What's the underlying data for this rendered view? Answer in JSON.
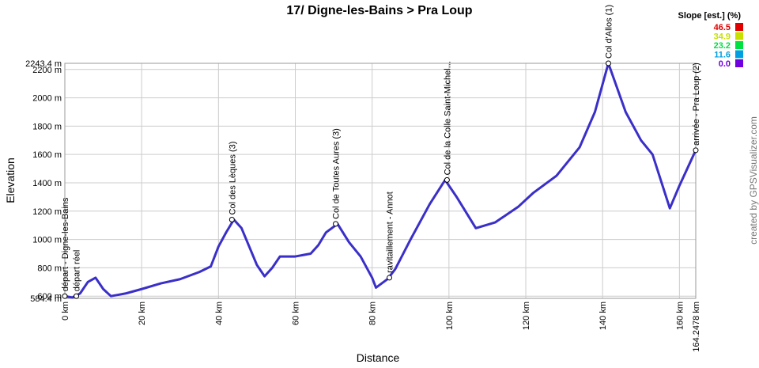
{
  "chart_data": {
    "type": "line",
    "title": "17/ Digne-les-Bains > Pra Loup",
    "x_label": "Distance",
    "y_label": "Elevation",
    "credit": "created by GPSVisualizer.com",
    "x": [
      0,
      2,
      4,
      6,
      8,
      10,
      12,
      14,
      16,
      20,
      25,
      30,
      35,
      38,
      40,
      42,
      44,
      46,
      48,
      50,
      52,
      54,
      56,
      60,
      64,
      66,
      68,
      71,
      74,
      77,
      80,
      81,
      84,
      86,
      90,
      95,
      99,
      102,
      107,
      112,
      118,
      122,
      128,
      134,
      138,
      141.5,
      146,
      150,
      153,
      157.5,
      160,
      164.2478
    ],
    "series": [
      {
        "name": "Elevation",
        "color": "#3a2fc8",
        "values": [
          600,
          590,
          620,
          700,
          730,
          650,
          600,
          610,
          620,
          650,
          690,
          720,
          770,
          810,
          950,
          1050,
          1140,
          1080,
          950,
          820,
          740,
          800,
          880,
          880,
          900,
          960,
          1050,
          1110,
          980,
          880,
          730,
          660,
          720,
          790,
          1000,
          1250,
          1420,
          1300,
          1080,
          1120,
          1230,
          1330,
          1450,
          1650,
          1900,
          2243.4,
          1900,
          1700,
          1600,
          1220,
          1380,
          1630
        ]
      }
    ],
    "xlim": [
      0,
      164.2478
    ],
    "ylim": [
      584.4,
      2243.4
    ],
    "xticks": [
      {
        "value": 0,
        "label": "0 km"
      },
      {
        "value": 20,
        "label": "20 km"
      },
      {
        "value": 40,
        "label": "40 km"
      },
      {
        "value": 60,
        "label": "60 km"
      },
      {
        "value": 80,
        "label": "80 km"
      },
      {
        "value": 100,
        "label": "100 km"
      },
      {
        "value": 120,
        "label": "120 km"
      },
      {
        "value": 140,
        "label": "140 km"
      },
      {
        "value": 160,
        "label": "160 km"
      },
      {
        "value": 164.2478,
        "label": "164.2478 km"
      }
    ],
    "yticks": [
      {
        "value": 584.4,
        "label": "584.4 m"
      },
      {
        "value": 600,
        "label": "600 m"
      },
      {
        "value": 800,
        "label": "800 m"
      },
      {
        "value": 1000,
        "label": "1000 m"
      },
      {
        "value": 1200,
        "label": "1200 m"
      },
      {
        "value": 1400,
        "label": "1400 m"
      },
      {
        "value": 1600,
        "label": "1600 m"
      },
      {
        "value": 1800,
        "label": "1800 m"
      },
      {
        "value": 2000,
        "label": "2000 m"
      },
      {
        "value": 2200,
        "label": "2200 m"
      },
      {
        "value": 2243.4,
        "label": "2243.4 m"
      }
    ],
    "grid": true,
    "annotations": [
      {
        "text": "départ - Digne-les-Bains",
        "x": 0,
        "y": 600
      },
      {
        "text": "départ réel",
        "x": 3,
        "y": 600
      },
      {
        "text": "Col des Lèques (3)",
        "x": 43.5,
        "y": 1140
      },
      {
        "text": "Col de Toutes Aures (3)",
        "x": 70.5,
        "y": 1110
      },
      {
        "text": "ravitaillement - Annot",
        "x": 84.5,
        "y": 730
      },
      {
        "text": "Col de la Colle Saint-Michel...",
        "x": 99.5,
        "y": 1420
      },
      {
        "text": "Col d'Allos (1)",
        "x": 141.5,
        "y": 2243.4
      },
      {
        "text": "arrivée - Pra Loup (2)",
        "x": 164.2478,
        "y": 1630
      }
    ],
    "legend": {
      "title": "Slope [est.] (%)",
      "items": [
        {
          "value": 46.5,
          "color": "#e00000"
        },
        {
          "value": 34.9,
          "color": "#c8e000"
        },
        {
          "value": 23.2,
          "color": "#00e040"
        },
        {
          "value": 11.6,
          "color": "#00a0e0"
        },
        {
          "value": 0,
          "label": "0.0",
          "color": "#7000e0"
        }
      ]
    }
  }
}
